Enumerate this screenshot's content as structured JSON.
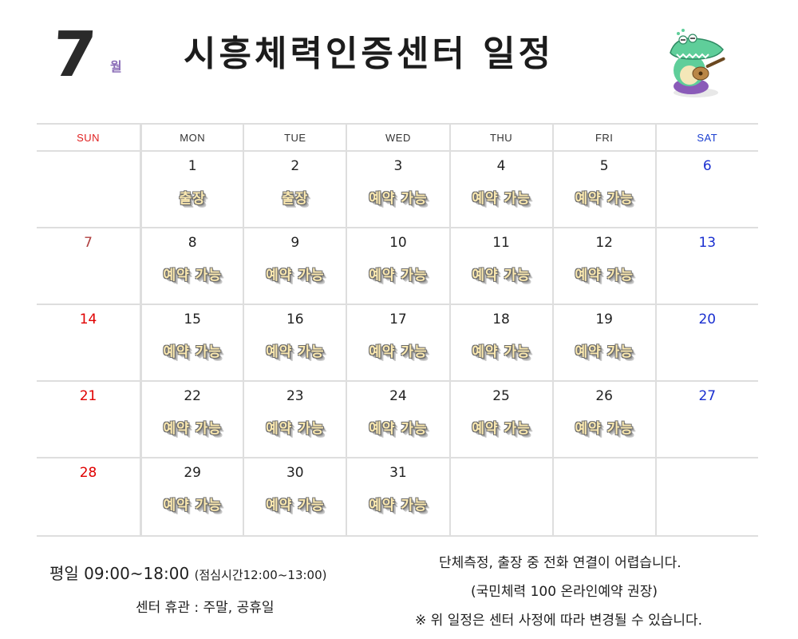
{
  "header": {
    "month": "7",
    "month_label": "월",
    "title": "시흥체력인증센터  일정"
  },
  "colors": {
    "sunday": "#e00000",
    "saturday": "#1a2fd0",
    "badge_fill": "#fbe9b0",
    "grid": "#dedede"
  },
  "calendar": {
    "days_of_week": [
      "SUN",
      "MON",
      "TUE",
      "WED",
      "THU",
      "FRI",
      "SAT"
    ],
    "weeks": [
      [
        {
          "day": "",
          "status": ""
        },
        {
          "day": "1",
          "status": "출장"
        },
        {
          "day": "2",
          "status": "출장"
        },
        {
          "day": "3",
          "status": "예약 가능"
        },
        {
          "day": "4",
          "status": "예약 가능"
        },
        {
          "day": "5",
          "status": "예약 가능"
        },
        {
          "day": "6",
          "status": ""
        }
      ],
      [
        {
          "day": "7",
          "status": ""
        },
        {
          "day": "8",
          "status": "예약 가능"
        },
        {
          "day": "9",
          "status": "예약 가능"
        },
        {
          "day": "10",
          "status": "예약 가능"
        },
        {
          "day": "11",
          "status": "예약 가능"
        },
        {
          "day": "12",
          "status": "예약 가능"
        },
        {
          "day": "13",
          "status": ""
        }
      ],
      [
        {
          "day": "14",
          "status": ""
        },
        {
          "day": "15",
          "status": "예약 가능"
        },
        {
          "day": "16",
          "status": "예약 가능"
        },
        {
          "day": "17",
          "status": "예약 가능"
        },
        {
          "day": "18",
          "status": "예약 가능"
        },
        {
          "day": "19",
          "status": "예약 가능"
        },
        {
          "day": "20",
          "status": ""
        }
      ],
      [
        {
          "day": "21",
          "status": ""
        },
        {
          "day": "22",
          "status": "예약 가능"
        },
        {
          "day": "23",
          "status": "예약 가능"
        },
        {
          "day": "24",
          "status": "예약 가능"
        },
        {
          "day": "25",
          "status": "예약 가능"
        },
        {
          "day": "26",
          "status": "예약 가능"
        },
        {
          "day": "27",
          "status": ""
        }
      ],
      [
        {
          "day": "28",
          "status": ""
        },
        {
          "day": "29",
          "status": "예약 가능"
        },
        {
          "day": "30",
          "status": "예약 가능"
        },
        {
          "day": "31",
          "status": "예약 가능"
        },
        {
          "day": "",
          "status": ""
        },
        {
          "day": "",
          "status": ""
        },
        {
          "day": "",
          "status": ""
        }
      ]
    ]
  },
  "footer": {
    "hours": "평일 09:00~18:00",
    "lunch": "(점심시간12:00~13:00)",
    "closed": "센터 휴관 : 주말, 공휴일",
    "notice_1": "단체측정, 출장 중  전화 연결이 어렵습니다.",
    "notice_2": "(국민체력 100 온라인예약 권장)",
    "notice_3": "※ 위 일정은 센터 사정에 따라 변경될 수 있습니다."
  }
}
